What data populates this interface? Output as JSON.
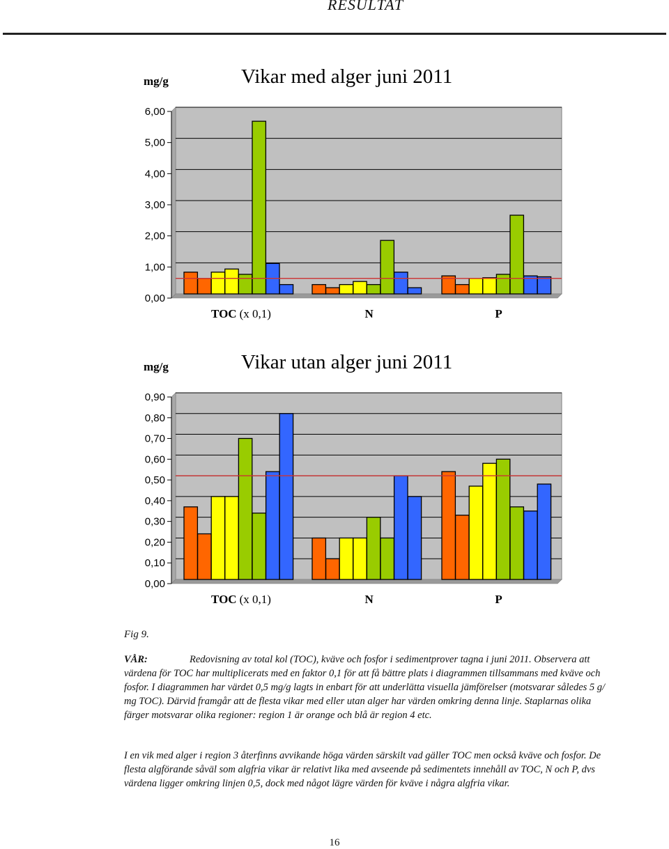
{
  "header": {
    "title": "RESULTAT"
  },
  "colors": {
    "region1": "#ff6600",
    "region2": "#ffff00",
    "region3": "#99cc00",
    "region4": "#3366ff",
    "plot_bg": "#c0c0c0",
    "reference_line": "#cc3333"
  },
  "chart_data": [
    {
      "type": "bar",
      "title": "Vikar med alger juni 2011",
      "ylabel": "mg/g",
      "ylim": [
        0,
        6
      ],
      "yticks": [
        "0,00",
        "1,00",
        "2,00",
        "3,00",
        "4,00",
        "5,00",
        "6,00"
      ],
      "reference_line": 0.5,
      "groups": [
        {
          "label": "TOC",
          "suffix": "(x 0,1)",
          "values": [
            0.7,
            0.5,
            0.7,
            0.8,
            0.63,
            5.55,
            0.98,
            0.3
          ],
          "regions": [
            1,
            1,
            2,
            2,
            3,
            3,
            4,
            4
          ]
        },
        {
          "label": "N",
          "suffix": "",
          "values": [
            0.3,
            0.2,
            0.3,
            0.4,
            0.3,
            1.72,
            0.7,
            0.2
          ],
          "regions": [
            1,
            1,
            2,
            2,
            3,
            3,
            4,
            4
          ]
        },
        {
          "label": "P",
          "suffix": "",
          "values": [
            0.58,
            0.3,
            0.5,
            0.52,
            0.63,
            2.53,
            0.58,
            0.55
          ],
          "regions": [
            1,
            1,
            2,
            2,
            3,
            3,
            4,
            4
          ]
        }
      ]
    },
    {
      "type": "bar",
      "title": "Vikar utan alger juni 2011",
      "ylabel": "mg/g",
      "ylim": [
        0,
        0.9
      ],
      "yticks": [
        "0,00",
        "0,10",
        "0,20",
        "0,30",
        "0,40",
        "0,50",
        "0,60",
        "0,70",
        "0,80",
        "0,90"
      ],
      "reference_line": 0.5,
      "groups": [
        {
          "label": "TOC",
          "suffix": "(x 0,1)",
          "values": [
            0.35,
            0.22,
            0.4,
            0.4,
            0.68,
            0.32,
            0.52,
            0.8
          ],
          "regions": [
            1,
            1,
            2,
            2,
            3,
            3,
            4,
            4
          ]
        },
        {
          "label": "N",
          "suffix": "",
          "values": [
            0.2,
            0.1,
            0.2,
            0.2,
            0.3,
            0.2,
            0.5,
            0.4
          ],
          "regions": [
            1,
            1,
            2,
            2,
            3,
            3,
            4,
            4
          ]
        },
        {
          "label": "P",
          "suffix": "",
          "values": [
            0.52,
            0.31,
            0.45,
            0.56,
            0.58,
            0.35,
            0.33,
            0.46
          ],
          "regions": [
            1,
            1,
            2,
            2,
            3,
            3,
            4,
            4
          ]
        }
      ]
    }
  ],
  "figure": {
    "label": "Fig 9."
  },
  "caption": {
    "season": "VÅR:",
    "text": "Redovisning av total kol (TOC), kväve och fosfor i sedimentprover tagna i juni 2011. Observera att värdena för TOC har multiplicerats med en faktor 0,1 för att få bättre plats i diagrammen tillsammans med kväve och fosfor. I diagrammen har värdet 0,5 mg/g lagts in enbart för att underlätta visuella jämförelser (motsvarar således 5 g/ mg TOC). Därvid framgår att de flesta vikar med eller utan alger har värden omkring denna linje. Staplarnas olika färger motsvarar olika regioner: region 1 är orange och blå är region 4 etc."
  },
  "paragraph2": "I en vik med alger i region 3 återfinns avvikande höga värden särskilt vad gäller TOC men också kväve och fosfor. De flesta algförande såväl som algfria vikar är relativt lika med avseende på sedimentets innehåll av TOC, N och P, dvs värdena ligger omkring  linjen 0,5, dock med något lägre värden för kväve i några algfria vikar.",
  "page_number": "16"
}
